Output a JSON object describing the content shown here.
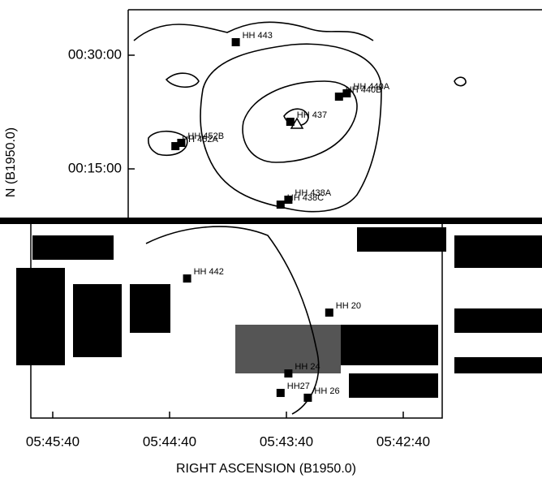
{
  "chart_data": {
    "type": "scatter",
    "xlabel": "RIGHT ASCENSION (B1950.0)",
    "ylabel": "N (B1950.0)",
    "xlim": [
      20751.25,
      20540
    ],
    "ylim": [
      -1073,
      2160
    ],
    "xticks": [
      {
        "value": 20740,
        "label": "05:45:40"
      },
      {
        "value": 20680,
        "label": "05:44:40"
      },
      {
        "value": 20620,
        "label": "05:43:40"
      },
      {
        "value": 20560,
        "label": "05:42:40"
      }
    ],
    "yticks": [
      {
        "value": 1800,
        "label": "00:30:00"
      },
      {
        "value": 900,
        "label": "00:15:00"
      }
    ],
    "color": "#000000",
    "labels": [
      "HH 443",
      "HH 440A",
      "HH 440B",
      "HH 437",
      "HH 452B",
      "HH 452A",
      "HH 438A",
      "HH 438C",
      "HH 442",
      "HH 20",
      "HH 24",
      "HH27",
      "HH 26"
    ],
    "x": [
      20646,
      20589,
      20593,
      20618,
      20674,
      20677,
      20619,
      20623,
      20671,
      20598,
      20619,
      20623,
      20609
    ],
    "values": [
      1903,
      1498,
      1472,
      1273,
      1106,
      1080,
      656,
      617,
      32,
      -238,
      -720,
      -874,
      -912
    ]
  }
}
